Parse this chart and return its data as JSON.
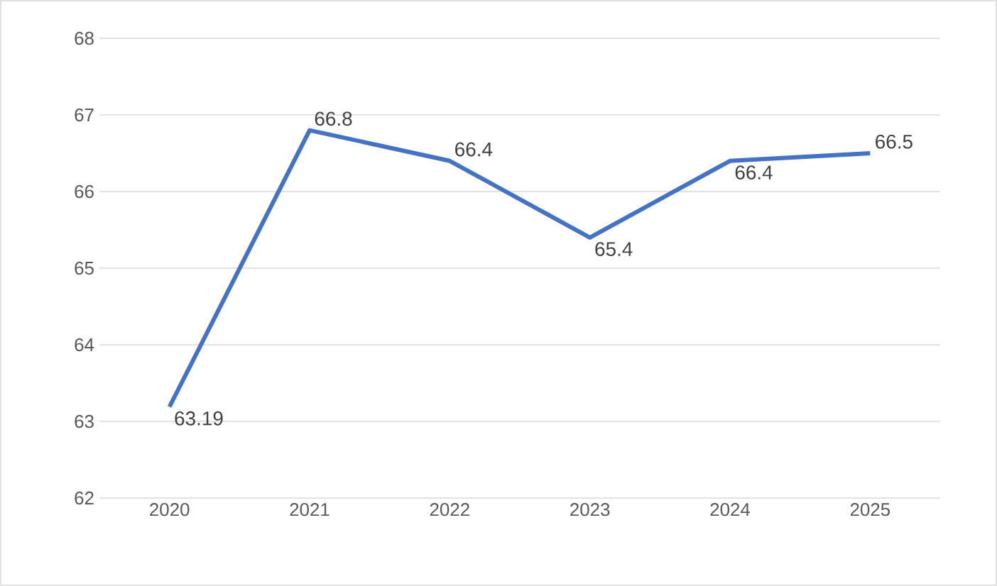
{
  "chart_data": {
    "type": "line",
    "categories": [
      "2020",
      "2021",
      "2022",
      "2023",
      "2024",
      "2025"
    ],
    "series": [
      {
        "color": "#4472c4",
        "values": [
          63.19,
          66.8,
          66.4,
          65.4,
          66.4,
          66.5
        ]
      }
    ],
    "ylim": [
      62,
      68
    ],
    "yticks": [
      62,
      63,
      64,
      65,
      66,
      67,
      68
    ],
    "grid": "y",
    "data_labels": true,
    "marker": "none",
    "line_style": "solid"
  }
}
